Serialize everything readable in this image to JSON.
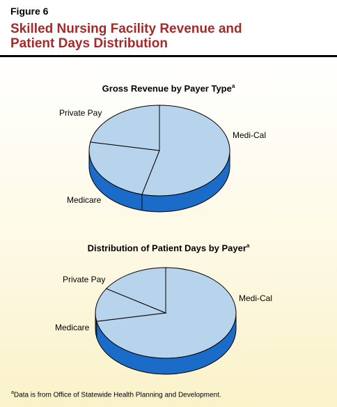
{
  "figure": {
    "label": "Figure 6",
    "title_line1": "Skilled Nursing Facility Revenue and",
    "title_line2": "Patient Days Distribution"
  },
  "chart_data": [
    {
      "type": "pie",
      "title": "Gross Revenue by Payer Type",
      "title_note": "a",
      "categories": [
        "Medi-Cal",
        "Medicare",
        "Private Pay"
      ],
      "values": [
        54,
        24,
        22
      ],
      "unit": "percent"
    },
    {
      "type": "pie",
      "title": "Distribution of Patient Days by Payer",
      "title_note": "a",
      "categories": [
        "Medi-Cal",
        "Medicare",
        "Private Pay"
      ],
      "values": [
        72,
        12,
        16
      ],
      "unit": "percent"
    }
  ],
  "footnote": {
    "marker": "a",
    "text": "Data is from Office of Statewide Health Planning and Development."
  },
  "colors": {
    "slice_top": "#b8d3ec",
    "slice_side": "#1a6cc8",
    "outline": "#000000",
    "title_red": "#a52a2a"
  }
}
